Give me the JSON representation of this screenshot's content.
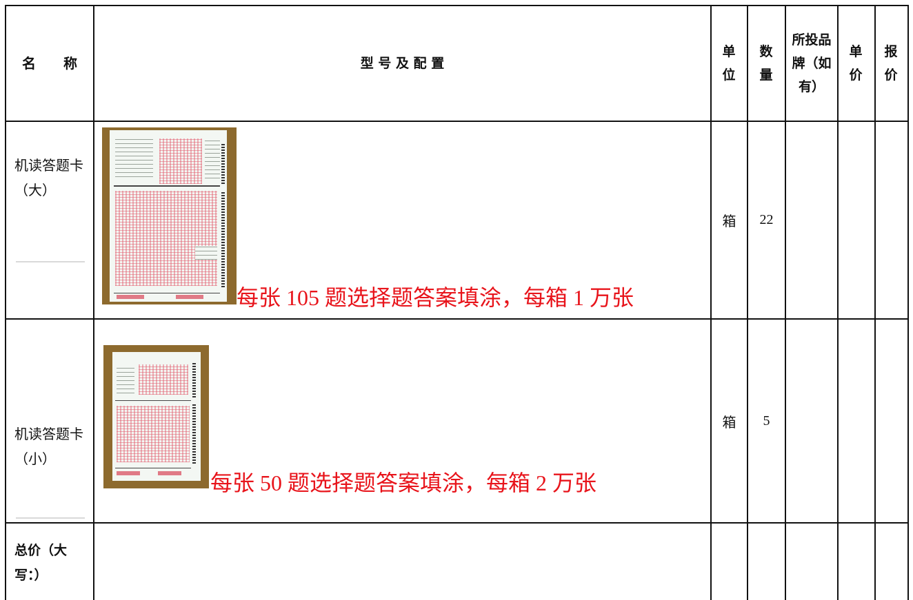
{
  "header": {
    "name": "名　　称",
    "model_config": "型 号 及 配 置",
    "unit": "单位",
    "quantity": "数量",
    "brand": "所投品牌（如有）",
    "unit_price": "单价",
    "quote": "报价"
  },
  "rows": [
    {
      "name": "机读答题卡（大）",
      "config_note": "每张 105 题选择题答案填涂，每箱 1 万张",
      "image_icon": "answer-sheet-large-photo",
      "unit": "箱",
      "quantity": "22",
      "brand": "",
      "unit_price": "",
      "quote": ""
    },
    {
      "name": "机读答题卡（小）",
      "config_note": "每张 50 题选择题答案填涂，每箱 2 万张",
      "image_icon": "answer-sheet-small-photo",
      "unit": "箱",
      "quantity": "5",
      "brand": "",
      "unit_price": "",
      "quote": ""
    }
  ],
  "total": {
    "label": "总价（大写：）",
    "value": ""
  },
  "colors": {
    "note_red": "#e8141b",
    "rule": "#111111"
  }
}
